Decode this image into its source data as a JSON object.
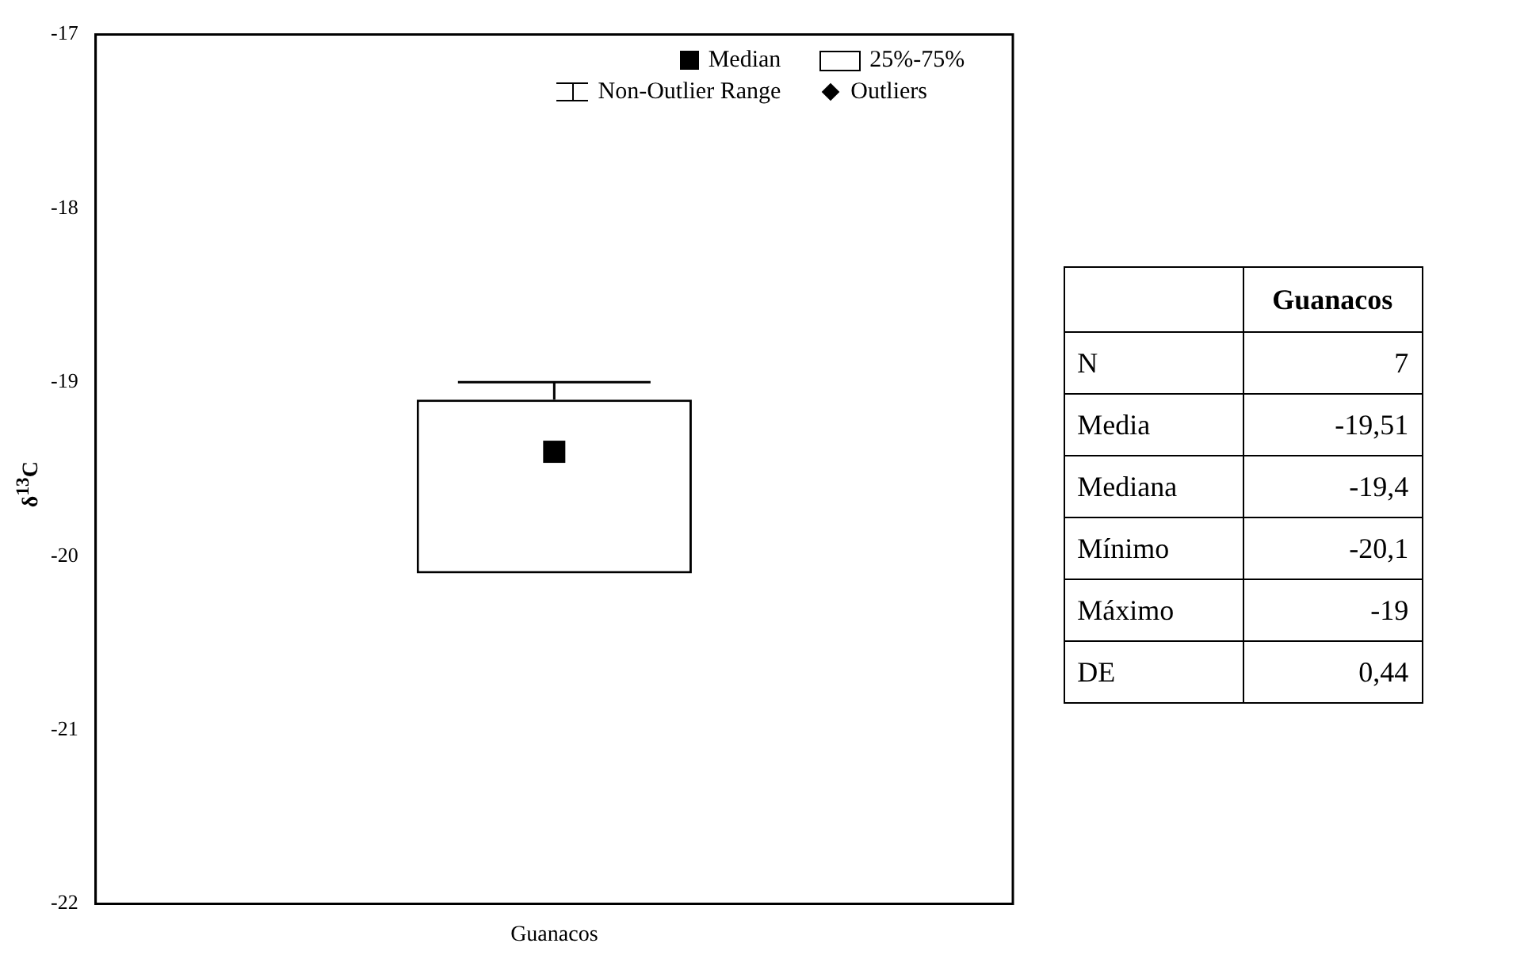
{
  "chart_data": {
    "type": "box",
    "ylabel": "δ$^{13}$C",
    "categories": [
      "Guanacos"
    ],
    "boxes": [
      {
        "low": -20.1,
        "q1": -20.1,
        "median": -19.4,
        "q3": -19.1,
        "high": -19.0
      }
    ],
    "ylim": [
      -22,
      -17
    ],
    "yticks": [
      -22,
      -21,
      -20,
      -19,
      -18,
      -17
    ],
    "grid": false,
    "annotations": [
      "Median",
      "25%-75%",
      "Non-Outlier Range",
      "Outliers",
      "Guanacos",
      "N",
      "7",
      "Media",
      "-19,51",
      "Mediana",
      "-19,4",
      "Mínimo",
      "-20,1",
      "Máximo",
      "-19",
      "DE",
      "0,44"
    ]
  }
}
